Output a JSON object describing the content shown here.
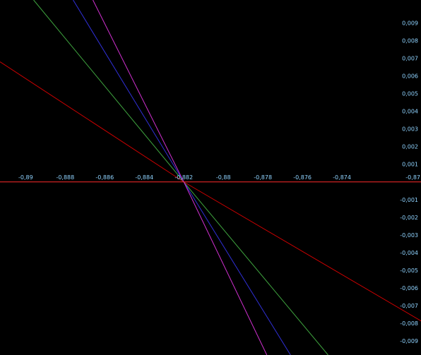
{
  "chart_data": {
    "type": "line",
    "background_color": "#000000",
    "axis_color": "#ff2a2a",
    "tick_label_color": "#8fd3ff",
    "xlim": [
      -0.8913,
      -0.87
    ],
    "ylim": [
      -0.0098,
      0.0103
    ],
    "x_ticks": [
      {
        "value": -0.89,
        "label": "-0,89"
      },
      {
        "value": -0.888,
        "label": "-0,888"
      },
      {
        "value": -0.886,
        "label": "-0,886"
      },
      {
        "value": -0.884,
        "label": "-0,884"
      },
      {
        "value": -0.882,
        "label": "-0,882"
      },
      {
        "value": -0.88,
        "label": "-0,88"
      },
      {
        "value": -0.878,
        "label": "-0,878"
      },
      {
        "value": -0.876,
        "label": "-0,876"
      },
      {
        "value": -0.874,
        "label": "-0,874"
      },
      {
        "value": -0.87,
        "label": "-0,87"
      }
    ],
    "y_ticks": [
      {
        "value": 0.009,
        "label": "0,009"
      },
      {
        "value": 0.008,
        "label": "0,008"
      },
      {
        "value": 0.007,
        "label": "0,007"
      },
      {
        "value": 0.006,
        "label": "0,006"
      },
      {
        "value": 0.005,
        "label": "0,005"
      },
      {
        "value": 0.004,
        "label": "0,004"
      },
      {
        "value": 0.003,
        "label": "0,003"
      },
      {
        "value": 0.002,
        "label": "0,002"
      },
      {
        "value": 0.001,
        "label": "0,001"
      },
      {
        "value": -0.001,
        "label": "-0,001"
      },
      {
        "value": -0.002,
        "label": "-0,002"
      },
      {
        "value": -0.003,
        "label": "-0,003"
      },
      {
        "value": -0.004,
        "label": "-0,004"
      },
      {
        "value": -0.005,
        "label": "-0,005"
      },
      {
        "value": -0.006,
        "label": "-0,006"
      },
      {
        "value": -0.007,
        "label": "-0,007"
      },
      {
        "value": -0.008,
        "label": "-0,008"
      },
      {
        "value": -0.009,
        "label": "-0,009"
      }
    ],
    "series": [
      {
        "color": "#cc0000",
        "x": [
          -0.8913,
          -0.882,
          -0.8698
        ],
        "y": [
          0.0068,
          0.0,
          -0.008
        ]
      },
      {
        "color": "#3fa53f",
        "x": [
          -0.8896,
          -0.882,
          -0.8747
        ],
        "y": [
          0.0103,
          0.0,
          -0.0098
        ]
      },
      {
        "color": "#3030d8",
        "x": [
          -0.8876,
          -0.882,
          -0.8766
        ],
        "y": [
          0.0103,
          0.0,
          -0.0098
        ]
      },
      {
        "color": "#d030d0",
        "x": [
          -0.8866,
          -0.882,
          -0.8778
        ],
        "y": [
          0.0103,
          0.0,
          -0.0098
        ]
      }
    ]
  }
}
